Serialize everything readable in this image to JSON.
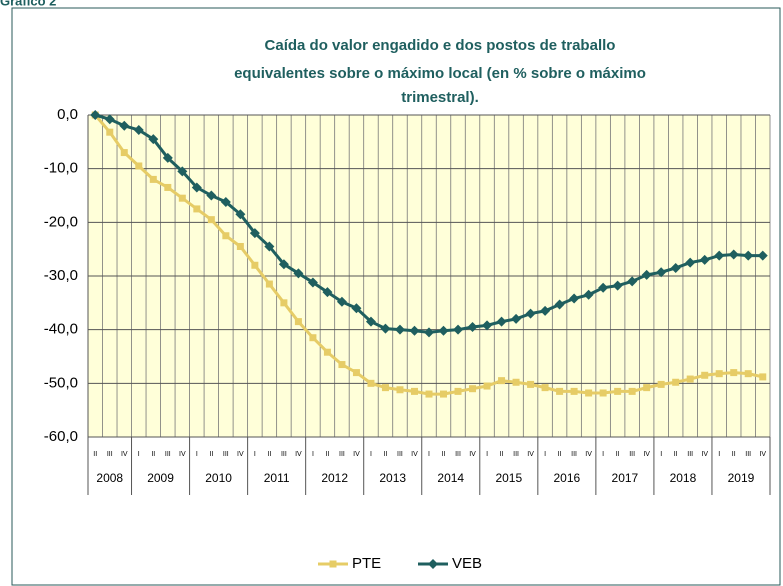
{
  "header": "Gráfico 2",
  "chart_data": {
    "type": "line",
    "title": [
      "Caída do valor engadido e dos postos  de traballo",
      "equivalentes sobre  o máximo local (en % sobre  o máximo",
      "trimestral)."
    ],
    "categories": [
      "II",
      "III",
      "IV",
      "I",
      "II",
      "III",
      "IV",
      "I",
      "II",
      "III",
      "IV",
      "I",
      "II",
      "III",
      "IV",
      "I",
      "II",
      "III",
      "IV",
      "I",
      "II",
      "III",
      "IV",
      "I",
      "II",
      "III",
      "IV",
      "I",
      "II",
      "III",
      "IV",
      "I",
      "II",
      "III",
      "IV",
      "I",
      "II",
      "III",
      "IV",
      "I",
      "II",
      "III",
      "IV",
      "I",
      "II",
      "III",
      "IV"
    ],
    "years": [
      "2008",
      "2009",
      "2010",
      "2011",
      "2012",
      "2013",
      "2014",
      "2015",
      "2016",
      "2017",
      "2018",
      "2019"
    ],
    "series": [
      {
        "name": "PTE",
        "color": "#e6cc66",
        "marker": "square",
        "values": [
          0,
          -3.2,
          -7,
          -9.5,
          -12,
          -13.5,
          -15.5,
          -17.5,
          -19.5,
          -22.5,
          -24.5,
          -28,
          -31.5,
          -35,
          -38.5,
          -41.5,
          -44.2,
          -46.5,
          -48,
          -50,
          -50.8,
          -51.2,
          -51.5,
          -52,
          -52,
          -51.5,
          -51,
          -50.5,
          -49.5,
          -49.8,
          -50.2,
          -50.8,
          -51.5,
          -51.5,
          -51.8,
          -51.8,
          -51.5,
          -51.5,
          -50.8,
          -50.2,
          -49.8,
          -49.2,
          -48.5,
          -48.2,
          -48,
          -48.2,
          -48.8
        ]
      },
      {
        "name": "VEB",
        "color": "#1f5f5f",
        "marker": "diamond",
        "values": [
          0,
          -0.8,
          -2,
          -2.8,
          -4.5,
          -8,
          -10.5,
          -13.5,
          -15,
          -16.2,
          -18.5,
          -22,
          -24.5,
          -27.8,
          -29.5,
          -31.2,
          -33,
          -34.8,
          -36,
          -38.5,
          -39.8,
          -40,
          -40.2,
          -40.5,
          -40.2,
          -40,
          -39.5,
          -39.2,
          -38.5,
          -38,
          -37,
          -36.5,
          -35.3,
          -34.2,
          -33.5,
          -32.2,
          -31.8,
          -31,
          -29.8,
          -29.3,
          -28.5,
          -27.5,
          -27,
          -26.2,
          -26,
          -26.2,
          -26.2
        ]
      }
    ],
    "ylim": [
      -60,
      0
    ],
    "yticks": [
      {
        "value": 0,
        "label": "0,0"
      },
      {
        "value": -10,
        "label": "-10,0"
      },
      {
        "value": -20,
        "label": "-20,0"
      },
      {
        "value": -30,
        "label": "-30,0"
      },
      {
        "value": -40,
        "label": "-40,0"
      },
      {
        "value": -50,
        "label": "-50,0"
      },
      {
        "value": -60,
        "label": "-60,0"
      }
    ],
    "grid": true,
    "background": "#ffffd9",
    "legend": "bottom"
  }
}
